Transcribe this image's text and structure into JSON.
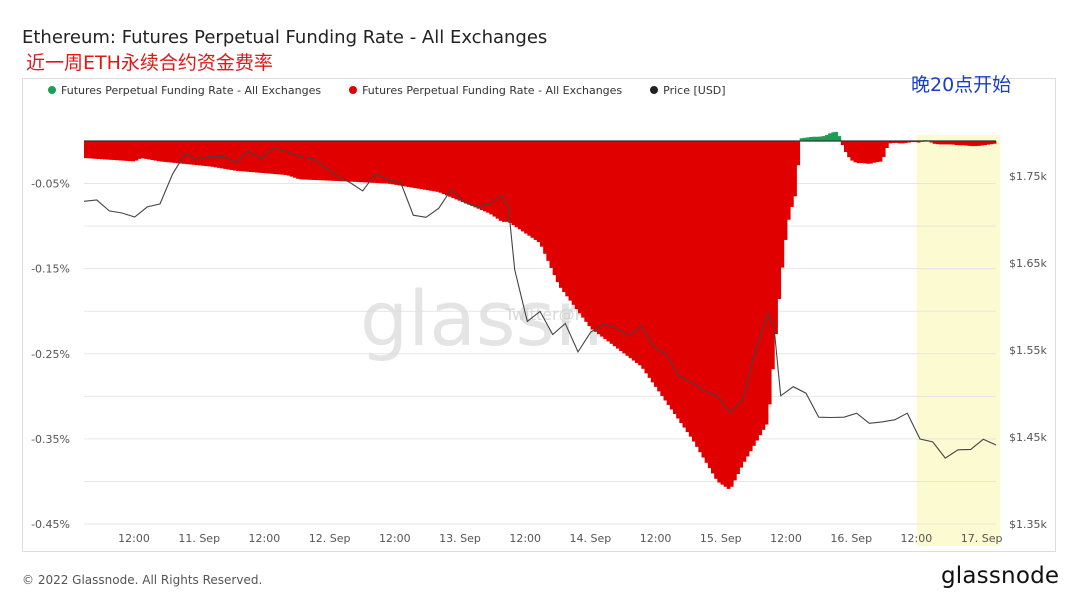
{
  "header": {
    "title": "Ethereum: Futures Perpetual Funding Rate - All Exchanges",
    "subtitle": "近一周ETH永续合约资金费率",
    "note": "晚20点开始"
  },
  "legend": {
    "items": [
      {
        "label": "Futures Perpetual Funding Rate - All Exchanges",
        "color": "#1aa053"
      },
      {
        "label": "Futures Perpetual Funding Rate - All Exchanges",
        "color": "#e00000"
      },
      {
        "label": "Price [USD]",
        "color": "#222222"
      }
    ]
  },
  "footer": {
    "copyright": "© 2022 Glassnode. All Rights Reserved.",
    "brand": "glassnode",
    "watermark": "glassnode",
    "watermark_small": "Twitter@Phyrex"
  },
  "chart_data": {
    "type": "bar",
    "title": "Ethereum: Futures Perpetual Funding Rate - All Exchanges",
    "subtitle": "近一周ETH永续合约资金费率",
    "x_ticks": [
      "12:00",
      "11. Sep",
      "12:00",
      "12. Sep",
      "12:00",
      "13. Sep",
      "12:00",
      "14. Sep",
      "12:00",
      "15. Sep",
      "12:00",
      "16. Sep",
      "12:00",
      "17. Sep"
    ],
    "y_left_ticks": [
      "-0.05%",
      "-0.15%",
      "-0.25%",
      "-0.35%",
      "-0.45%"
    ],
    "y_left_range_pct": [
      -0.45,
      0.0
    ],
    "y_right_ticks": [
      "$1.75k",
      "$1.65k",
      "$1.55k",
      "$1.45k",
      "$1.35k"
    ],
    "y_right_range_usd": [
      1350,
      1790
    ],
    "highlight": {
      "from_hours": 131.5,
      "to_hours": 144,
      "label": "晚20点开始",
      "color": "#fbfad0"
    },
    "funding_series": {
      "name": "Futures Perpetual Funding Rate - All Exchanges",
      "positive_color": "#1aa053",
      "negative_color": "#e00000",
      "x_hours": [
        0,
        8,
        9,
        12,
        20,
        24,
        32,
        34,
        40,
        48,
        56,
        64,
        66,
        67,
        72,
        75,
        80,
        88,
        96,
        100,
        102,
        104,
        108,
        110,
        111,
        112,
        112.5,
        113,
        114,
        115,
        116,
        117,
        118,
        119,
        120,
        121,
        122,
        123,
        124,
        125,
        126,
        127,
        128,
        129,
        130,
        131,
        132,
        133,
        134,
        135,
        136,
        137,
        138,
        139,
        140,
        141,
        142,
        143,
        144
      ],
      "values_pct": [
        -0.02,
        -0.024,
        -0.02,
        -0.024,
        -0.03,
        -0.035,
        -0.04,
        -0.045,
        -0.047,
        -0.05,
        -0.06,
        -0.085,
        -0.095,
        -0.095,
        -0.12,
        -0.17,
        -0.22,
        -0.265,
        -0.35,
        -0.4,
        -0.41,
        -0.38,
        -0.33,
        -0.165,
        -0.1,
        -0.07,
        -0.06,
        0.003,
        0.004,
        0.005,
        0.005,
        0.006,
        0.01,
        0.011,
        -0.01,
        -0.022,
        -0.026,
        -0.026,
        -0.027,
        -0.025,
        -0.024,
        -0.003,
        -0.002,
        -0.003,
        -0.002,
        -0.001,
        -0.002,
        0.002,
        -0.003,
        -0.004,
        -0.004,
        -0.004,
        -0.005,
        -0.005,
        -0.006,
        -0.006,
        -0.005,
        -0.004,
        -0.003
      ]
    },
    "price_series": {
      "name": "Price [USD]",
      "color": "#444444",
      "x_hours": [
        0,
        2,
        4,
        6,
        8,
        10,
        12,
        14,
        16,
        18,
        20,
        22,
        24,
        26,
        28,
        30,
        32,
        34,
        36,
        38,
        40,
        42,
        44,
        46,
        48,
        50,
        52,
        54,
        56,
        58,
        60,
        62,
        64,
        66,
        67,
        68,
        70,
        72,
        74,
        76,
        78,
        80,
        82,
        84,
        86,
        88,
        90,
        92,
        94,
        96,
        98,
        100,
        102,
        104,
        106,
        108,
        109,
        110,
        112,
        114,
        116,
        118,
        120,
        122,
        124,
        126,
        128,
        130,
        132,
        134,
        136,
        138,
        140,
        142,
        144
      ],
      "values_usd": [
        1723,
        1720,
        1712,
        1705,
        1705,
        1712,
        1720,
        1750,
        1778,
        1766,
        1775,
        1770,
        1768,
        1776,
        1772,
        1780,
        1780,
        1770,
        1772,
        1758,
        1752,
        1740,
        1735,
        1750,
        1748,
        1740,
        1707,
        1700,
        1715,
        1732,
        1722,
        1712,
        1720,
        1725,
        1718,
        1640,
        1585,
        1592,
        1570,
        1578,
        1550,
        1568,
        1582,
        1573,
        1568,
        1575,
        1556,
        1542,
        1522,
        1510,
        1505,
        1495,
        1480,
        1490,
        1552,
        1590,
        1575,
        1495,
        1510,
        1498,
        1475,
        1470,
        1475,
        1475,
        1468,
        1465,
        1472,
        1475,
        1450,
        1442,
        1428,
        1433,
        1438,
        1445,
        1443
      ]
    }
  }
}
